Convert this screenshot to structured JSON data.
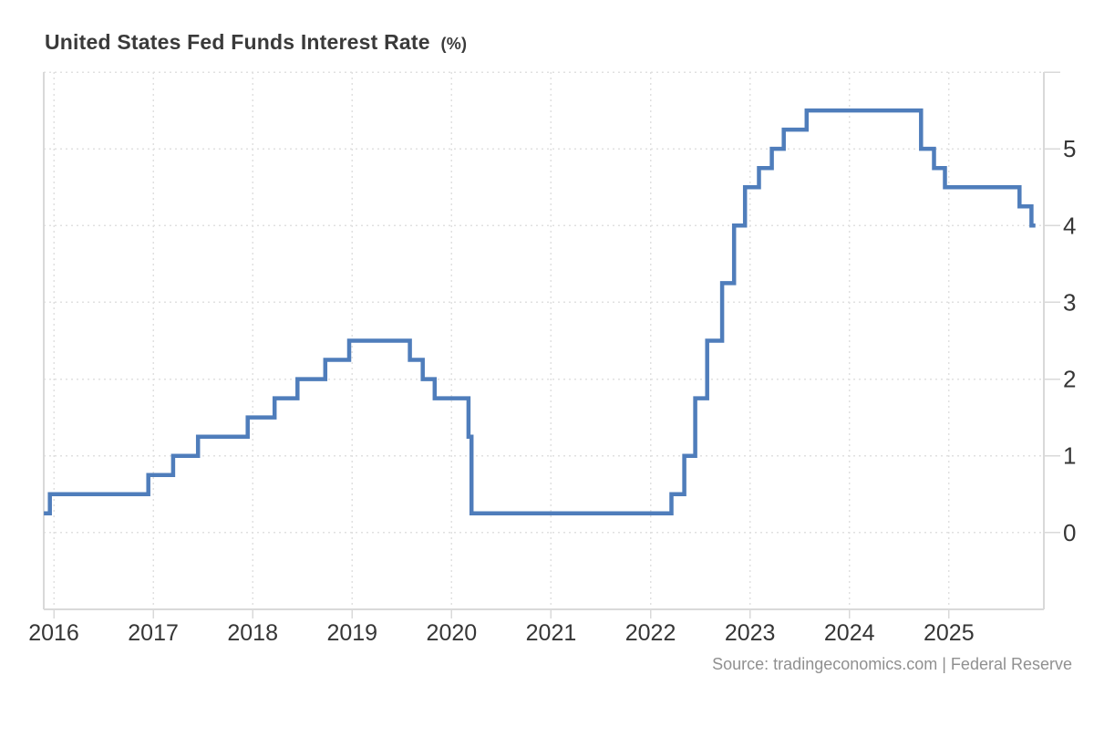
{
  "page": {
    "title": "United States Fed Funds Interest Rate",
    "title_suffix": "(%)",
    "source": "Source: tradingeconomics.com | Federal Reserve"
  },
  "chart_data": {
    "type": "line",
    "step": true,
    "title": "United States Fed Funds Interest Rate (%)",
    "series_name": "Fed Funds Interest Rate",
    "unit": "%",
    "xlabel": "",
    "ylabel": "",
    "x_ticks": [
      2016,
      2017,
      2018,
      2019,
      2020,
      2021,
      2022,
      2023,
      2024,
      2025
    ],
    "y_ticks": [
      0,
      1,
      2,
      3,
      4,
      5
    ],
    "xlim": [
      2015.899,
      2025.955
    ],
    "ylim": [
      -1,
      6
    ],
    "grid": true,
    "legend": false,
    "colors": {
      "line": "#4f7dbb",
      "grid": "#e0e0e0",
      "axis": "#d9d9d9",
      "labels": "#363636",
      "title": "#3a3a3a",
      "source": "#909090"
    },
    "points": [
      [
        2015.9,
        0.25
      ],
      [
        2015.96,
        0.5
      ],
      [
        2016.95,
        0.75
      ],
      [
        2017.2,
        1.0
      ],
      [
        2017.45,
        1.25
      ],
      [
        2017.95,
        1.5
      ],
      [
        2018.22,
        1.75
      ],
      [
        2018.45,
        2.0
      ],
      [
        2018.73,
        2.25
      ],
      [
        2018.97,
        2.5
      ],
      [
        2019.58,
        2.25
      ],
      [
        2019.71,
        2.0
      ],
      [
        2019.83,
        1.75
      ],
      [
        2020.17,
        1.25
      ],
      [
        2020.2,
        0.25
      ],
      [
        2022.21,
        0.5
      ],
      [
        2022.34,
        1.0
      ],
      [
        2022.45,
        1.75
      ],
      [
        2022.57,
        2.5
      ],
      [
        2022.72,
        3.25
      ],
      [
        2022.84,
        4.0
      ],
      [
        2022.95,
        4.5
      ],
      [
        2023.09,
        4.75
      ],
      [
        2023.22,
        5.0
      ],
      [
        2023.34,
        5.25
      ],
      [
        2023.57,
        5.5
      ],
      [
        2024.72,
        5.0
      ],
      [
        2024.85,
        4.75
      ],
      [
        2024.96,
        4.5
      ],
      [
        2025.71,
        4.25
      ],
      [
        2025.83,
        4.0
      ],
      [
        2025.87,
        4.0
      ]
    ]
  }
}
